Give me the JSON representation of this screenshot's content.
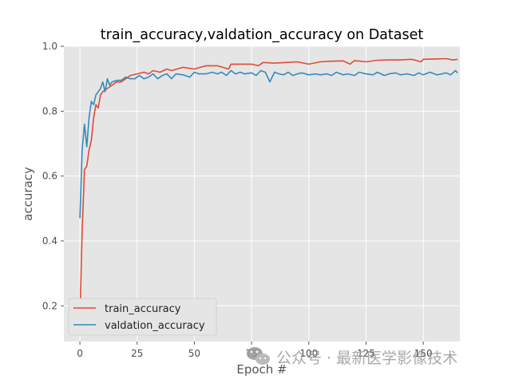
{
  "chart_data": {
    "type": "line",
    "title": "train_accuracy,valdation_accuracy on Dataset",
    "xlabel": "Epoch #",
    "ylabel": "accuracy",
    "xlim": [
      -7,
      166
    ],
    "ylim": [
      0.09,
      1.0
    ],
    "xticks": [
      0,
      25,
      50,
      75,
      100,
      125,
      150
    ],
    "yticks": [
      0.2,
      0.4,
      0.6,
      0.8,
      1.0
    ],
    "ytick_labels": [
      "0.2",
      "0.4",
      "0.6",
      "0.8",
      "1.0"
    ],
    "grid": true,
    "style": "ggplot",
    "legend_position": "lower-left",
    "series": [
      {
        "name": "train_accuracy",
        "color": "#e24a33",
        "x": [
          0,
          1,
          2,
          3,
          4,
          5,
          6,
          7,
          8,
          9,
          10,
          12,
          14,
          16,
          18,
          20,
          22,
          25,
          28,
          30,
          32,
          35,
          38,
          40,
          45,
          50,
          55,
          60,
          65,
          66,
          70,
          75,
          78,
          80,
          85,
          90,
          95,
          100,
          105,
          110,
          115,
          118,
          120,
          125,
          130,
          135,
          140,
          145,
          149,
          150,
          155,
          160,
          163,
          165
        ],
        "y": [
          0.16,
          0.43,
          0.62,
          0.63,
          0.68,
          0.71,
          0.78,
          0.82,
          0.81,
          0.85,
          0.86,
          0.87,
          0.88,
          0.89,
          0.89,
          0.9,
          0.91,
          0.915,
          0.92,
          0.915,
          0.925,
          0.92,
          0.93,
          0.925,
          0.935,
          0.93,
          0.94,
          0.94,
          0.93,
          0.945,
          0.945,
          0.945,
          0.94,
          0.95,
          0.948,
          0.95,
          0.952,
          0.945,
          0.952,
          0.954,
          0.955,
          0.945,
          0.956,
          0.952,
          0.957,
          0.958,
          0.958,
          0.96,
          0.952,
          0.96,
          0.961,
          0.962,
          0.958,
          0.96
        ]
      },
      {
        "name": "valdation_accuracy",
        "color": "#348abd",
        "x": [
          0,
          1,
          2,
          3,
          4,
          5,
          6,
          7,
          8,
          9,
          10,
          11,
          12,
          13,
          14,
          16,
          18,
          20,
          22,
          24,
          26,
          28,
          30,
          32,
          34,
          36,
          38,
          40,
          42,
          45,
          48,
          50,
          52,
          55,
          58,
          60,
          62,
          64,
          66,
          68,
          70,
          72,
          75,
          77,
          79,
          81,
          83,
          85,
          87,
          89,
          91,
          93,
          95,
          97,
          100,
          103,
          105,
          108,
          110,
          112,
          115,
          117,
          120,
          122,
          125,
          128,
          130,
          133,
          135,
          138,
          140,
          143,
          146,
          148,
          150,
          153,
          156,
          158,
          160,
          162,
          164,
          165
        ],
        "y": [
          0.47,
          0.68,
          0.76,
          0.69,
          0.78,
          0.83,
          0.82,
          0.85,
          0.86,
          0.87,
          0.89,
          0.86,
          0.9,
          0.88,
          0.89,
          0.895,
          0.895,
          0.905,
          0.9,
          0.9,
          0.91,
          0.9,
          0.905,
          0.915,
          0.9,
          0.91,
          0.915,
          0.9,
          0.915,
          0.912,
          0.905,
          0.92,
          0.915,
          0.915,
          0.92,
          0.915,
          0.92,
          0.91,
          0.925,
          0.915,
          0.92,
          0.915,
          0.918,
          0.91,
          0.925,
          0.92,
          0.89,
          0.92,
          0.915,
          0.912,
          0.92,
          0.91,
          0.915,
          0.918,
          0.912,
          0.915,
          0.912,
          0.915,
          0.91,
          0.92,
          0.912,
          0.915,
          0.91,
          0.92,
          0.915,
          0.912,
          0.92,
          0.91,
          0.915,
          0.918,
          0.912,
          0.915,
          0.91,
          0.918,
          0.912,
          0.92,
          0.912,
          0.915,
          0.918,
          0.912,
          0.925,
          0.918
        ]
      }
    ]
  },
  "watermark": {
    "icon": "wechat-icon",
    "text": "公众号 · 最新医学影像技术"
  }
}
